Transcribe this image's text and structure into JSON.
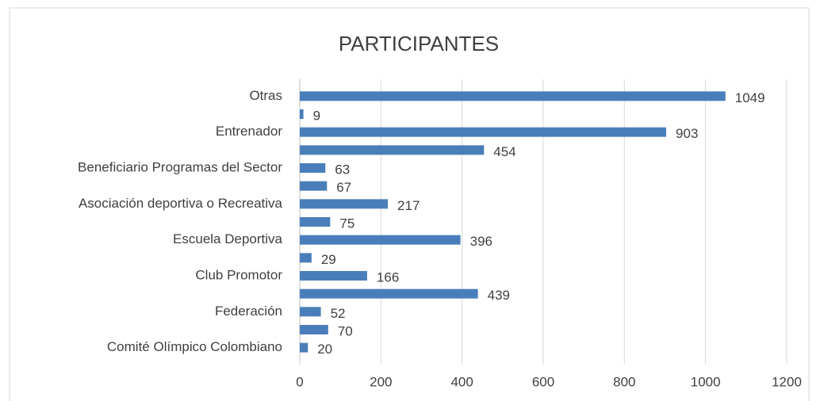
{
  "chart_data": {
    "type": "barh",
    "title": "PARTICIPANTES",
    "categories": [
      "Otras",
      null,
      "Entrenador",
      null,
      "Beneficiario Programas del Sector",
      null,
      "Asociación deportiva o Recreativa",
      null,
      "Escuela Deportiva",
      null,
      "Club Promotor",
      null,
      "Federación",
      null,
      "Comité Olímpico Colombiano"
    ],
    "values": [
      1049,
      9,
      903,
      454,
      63,
      67,
      217,
      75,
      396,
      29,
      166,
      439,
      52,
      70,
      20
    ],
    "color": "#4a7ebb",
    "xlim": [
      0,
      1200
    ],
    "xticks": [
      0,
      200,
      400,
      600,
      800,
      1000,
      1200
    ],
    "grid": true
  }
}
